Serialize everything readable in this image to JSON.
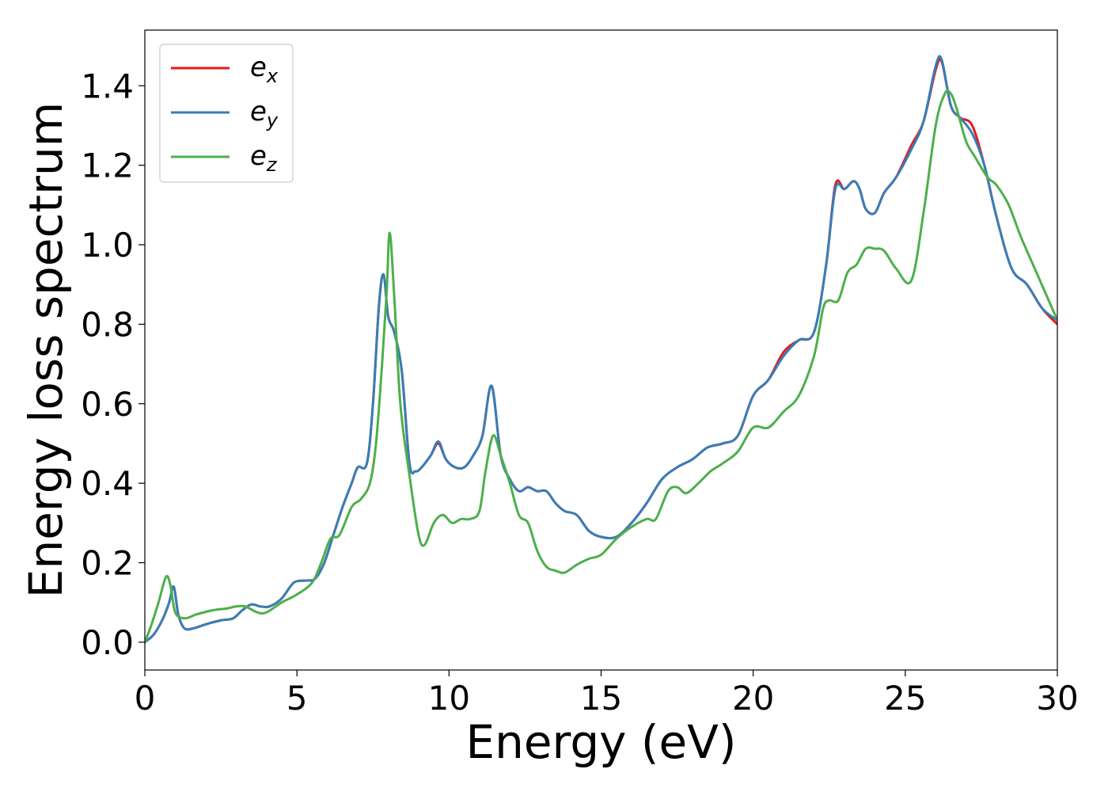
{
  "chart_data": {
    "type": "line",
    "xlabel": "Energy (eV)",
    "ylabel": "Energy loss spectrum",
    "xlim": [
      0,
      30
    ],
    "ylim": [
      -0.07,
      1.54
    ],
    "xticks": [
      0,
      5,
      10,
      15,
      20,
      25,
      30
    ],
    "yticks": [
      0.0,
      0.2,
      0.4,
      0.6,
      0.8,
      1.0,
      1.2,
      1.4
    ],
    "grid": false,
    "legend_position": "top-left",
    "series": [
      {
        "name": "e_x",
        "label_main": "e",
        "label_sub": "x",
        "color": "#e41a1c",
        "x": [
          0,
          0.3,
          0.6,
          0.8,
          0.95,
          1.1,
          1.3,
          1.6,
          2.0,
          2.5,
          2.9,
          3.2,
          3.5,
          3.8,
          4.1,
          4.5,
          4.9,
          5.3,
          5.6,
          5.9,
          6.2,
          6.5,
          6.8,
          7.0,
          7.3,
          7.5,
          7.7,
          7.85,
          8.0,
          8.2,
          8.45,
          8.7,
          8.9,
          9.1,
          9.4,
          9.65,
          9.9,
          10.2,
          10.5,
          10.8,
          11.1,
          11.4,
          11.7,
          12.0,
          12.3,
          12.6,
          12.9,
          13.2,
          13.5,
          13.8,
          14.2,
          14.6,
          15.0,
          15.5,
          16.0,
          16.5,
          17.0,
          17.5,
          18.0,
          18.5,
          19.0,
          19.5,
          20.0,
          20.5,
          21.0,
          21.5,
          22.0,
          22.4,
          22.7,
          23.0,
          23.3,
          23.5,
          23.7,
          24.0,
          24.3,
          24.7,
          25.2,
          25.6,
          26.0,
          26.2,
          26.5,
          26.8,
          27.2,
          27.6,
          28.0,
          28.5,
          29.0,
          29.5,
          30.0
        ],
        "y": [
          0.0,
          0.02,
          0.06,
          0.1,
          0.14,
          0.07,
          0.035,
          0.035,
          0.045,
          0.055,
          0.06,
          0.08,
          0.095,
          0.09,
          0.09,
          0.11,
          0.15,
          0.155,
          0.16,
          0.2,
          0.27,
          0.34,
          0.4,
          0.44,
          0.45,
          0.6,
          0.85,
          0.925,
          0.82,
          0.78,
          0.68,
          0.45,
          0.43,
          0.44,
          0.47,
          0.5,
          0.46,
          0.44,
          0.44,
          0.47,
          0.52,
          0.645,
          0.47,
          0.41,
          0.38,
          0.39,
          0.38,
          0.38,
          0.35,
          0.33,
          0.32,
          0.28,
          0.265,
          0.265,
          0.3,
          0.35,
          0.41,
          0.44,
          0.46,
          0.49,
          0.5,
          0.52,
          0.62,
          0.66,
          0.73,
          0.76,
          0.78,
          0.95,
          1.15,
          1.14,
          1.16,
          1.14,
          1.09,
          1.08,
          1.13,
          1.17,
          1.25,
          1.31,
          1.44,
          1.46,
          1.35,
          1.32,
          1.3,
          1.2,
          1.07,
          0.94,
          0.9,
          0.84,
          0.8
        ]
      },
      {
        "name": "e_y",
        "label_main": "e",
        "label_sub": "y",
        "color": "#377eb8",
        "x": [
          0,
          0.3,
          0.6,
          0.8,
          0.95,
          1.1,
          1.3,
          1.6,
          2.0,
          2.5,
          2.9,
          3.2,
          3.5,
          3.8,
          4.1,
          4.5,
          4.9,
          5.3,
          5.6,
          5.9,
          6.2,
          6.5,
          6.8,
          7.0,
          7.3,
          7.5,
          7.7,
          7.85,
          8.0,
          8.2,
          8.45,
          8.7,
          8.9,
          9.1,
          9.4,
          9.65,
          9.9,
          10.2,
          10.5,
          10.8,
          11.1,
          11.4,
          11.7,
          12.0,
          12.3,
          12.6,
          12.9,
          13.2,
          13.5,
          13.8,
          14.2,
          14.6,
          15.0,
          15.5,
          16.0,
          16.5,
          17.0,
          17.5,
          18.0,
          18.5,
          19.0,
          19.5,
          20.0,
          20.5,
          21.0,
          21.5,
          22.0,
          22.4,
          22.7,
          23.0,
          23.3,
          23.5,
          23.7,
          24.0,
          24.3,
          24.7,
          25.2,
          25.6,
          26.0,
          26.2,
          26.5,
          26.8,
          27.2,
          27.6,
          28.0,
          28.5,
          29.0,
          29.5,
          30.0
        ],
        "y": [
          0.0,
          0.02,
          0.06,
          0.1,
          0.14,
          0.07,
          0.035,
          0.035,
          0.045,
          0.055,
          0.06,
          0.08,
          0.095,
          0.09,
          0.09,
          0.11,
          0.15,
          0.155,
          0.16,
          0.2,
          0.27,
          0.34,
          0.4,
          0.44,
          0.45,
          0.6,
          0.85,
          0.925,
          0.82,
          0.78,
          0.68,
          0.45,
          0.43,
          0.44,
          0.47,
          0.505,
          0.46,
          0.44,
          0.44,
          0.47,
          0.52,
          0.645,
          0.47,
          0.41,
          0.38,
          0.39,
          0.38,
          0.38,
          0.35,
          0.33,
          0.32,
          0.28,
          0.265,
          0.265,
          0.3,
          0.35,
          0.41,
          0.44,
          0.46,
          0.49,
          0.5,
          0.52,
          0.62,
          0.66,
          0.72,
          0.76,
          0.78,
          0.95,
          1.14,
          1.14,
          1.16,
          1.14,
          1.09,
          1.08,
          1.13,
          1.17,
          1.24,
          1.31,
          1.45,
          1.465,
          1.35,
          1.32,
          1.28,
          1.2,
          1.07,
          0.94,
          0.9,
          0.84,
          0.81
        ]
      },
      {
        "name": "e_z",
        "label_main": "e",
        "label_sub": "z",
        "color": "#4daf4a",
        "x": [
          0,
          0.2,
          0.45,
          0.7,
          0.85,
          1.0,
          1.3,
          1.7,
          2.2,
          2.7,
          3.0,
          3.3,
          3.7,
          4.0,
          4.5,
          5.0,
          5.5,
          5.8,
          6.1,
          6.4,
          6.8,
          7.1,
          7.4,
          7.6,
          7.8,
          7.95,
          8.05,
          8.2,
          8.4,
          8.7,
          9.0,
          9.2,
          9.5,
          9.8,
          10.1,
          10.4,
          10.7,
          11.0,
          11.2,
          11.45,
          11.7,
          12.0,
          12.3,
          12.6,
          12.9,
          13.2,
          13.5,
          13.8,
          14.2,
          14.6,
          15.0,
          15.5,
          16.0,
          16.5,
          16.8,
          17.2,
          17.5,
          17.8,
          18.2,
          18.6,
          19.0,
          19.5,
          20.0,
          20.5,
          21.0,
          21.5,
          22.0,
          22.3,
          22.5,
          22.8,
          23.1,
          23.4,
          23.7,
          24.0,
          24.3,
          24.7,
          25.2,
          25.6,
          26.0,
          26.3,
          26.5,
          26.7,
          27.0,
          27.3,
          27.7,
          28.0,
          28.4,
          28.8,
          29.2,
          29.6,
          30.0
        ],
        "y": [
          0.0,
          0.04,
          0.1,
          0.165,
          0.14,
          0.075,
          0.06,
          0.07,
          0.08,
          0.085,
          0.09,
          0.09,
          0.075,
          0.075,
          0.1,
          0.12,
          0.15,
          0.2,
          0.26,
          0.27,
          0.34,
          0.36,
          0.4,
          0.5,
          0.7,
          0.88,
          1.03,
          0.87,
          0.6,
          0.42,
          0.27,
          0.245,
          0.3,
          0.32,
          0.3,
          0.31,
          0.31,
          0.33,
          0.43,
          0.52,
          0.47,
          0.4,
          0.32,
          0.3,
          0.23,
          0.19,
          0.18,
          0.175,
          0.195,
          0.21,
          0.22,
          0.26,
          0.29,
          0.31,
          0.31,
          0.38,
          0.39,
          0.375,
          0.4,
          0.43,
          0.45,
          0.48,
          0.54,
          0.54,
          0.58,
          0.62,
          0.72,
          0.84,
          0.86,
          0.86,
          0.93,
          0.95,
          0.99,
          0.99,
          0.985,
          0.94,
          0.91,
          1.08,
          1.3,
          1.38,
          1.38,
          1.34,
          1.26,
          1.22,
          1.17,
          1.15,
          1.1,
          1.02,
          0.95,
          0.88,
          0.81
        ]
      }
    ]
  }
}
